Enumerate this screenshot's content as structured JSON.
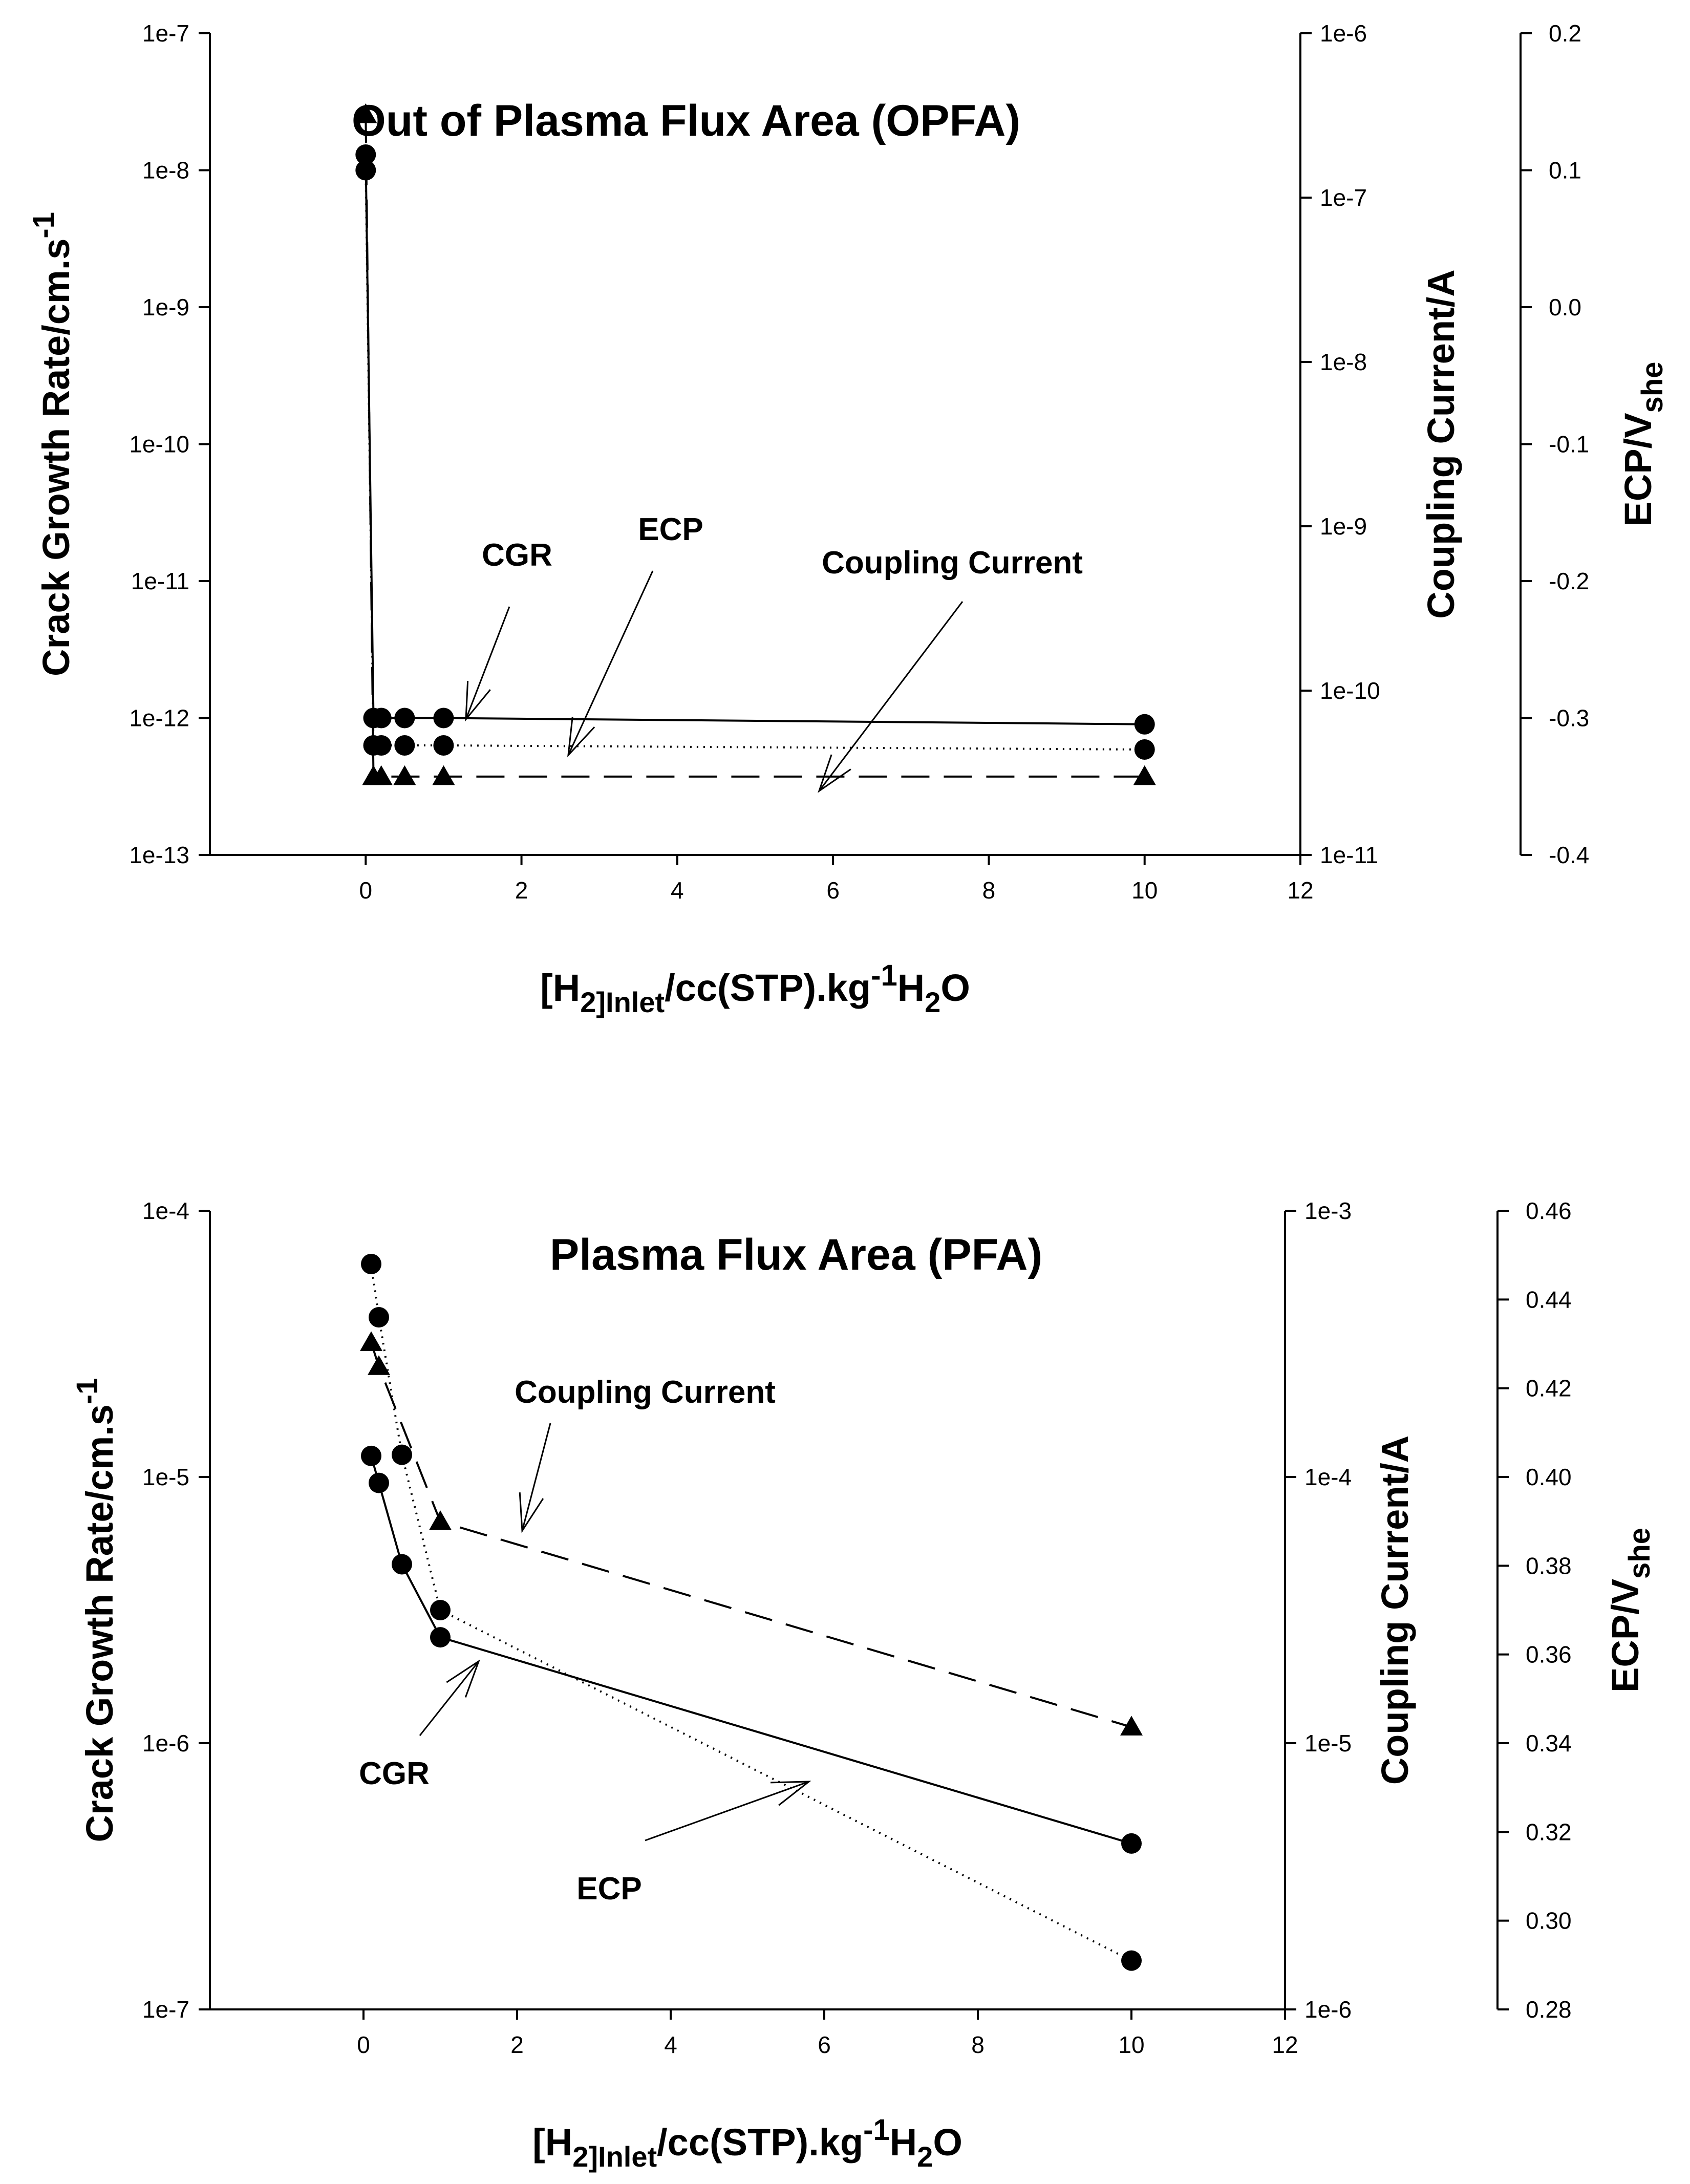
{
  "chart_data": [
    {
      "type": "line",
      "title": "Out of Plasma Flux Area (OPFA)",
      "xlabel": {
        "main": "[H",
        "sub1": "2",
        "sub2": "]Inlet",
        "mid": "/cc(STP).kg",
        "sup": "-1",
        "end1": "H",
        "sub3": "2",
        "end2": "O"
      },
      "xlim": [
        -2,
        12
      ],
      "xticks": [
        0,
        2,
        4,
        6,
        8,
        10,
        12
      ],
      "xtick_labels": [
        "0",
        "2",
        "4",
        "6",
        "8",
        "10",
        "12"
      ],
      "y_left": {
        "label": "Crack Growth Rate/cm.s",
        "label_sup": "-1",
        "scale": "log",
        "range": [
          1e-13,
          1e-07
        ],
        "ticks": [
          1e-13,
          1e-12,
          1e-11,
          1e-10,
          1e-09,
          1e-08,
          1e-07
        ],
        "tick_labels": [
          "1e-13",
          "1e-12",
          "1e-11",
          "1e-10",
          "1e-9",
          "1e-8",
          "1e-7"
        ]
      },
      "y_right1": {
        "label": "Coupling Current/A",
        "scale": "log",
        "range": [
          1e-11,
          1e-06
        ],
        "ticks": [
          1e-11,
          1e-10,
          1e-09,
          1e-08,
          1e-07,
          1e-06
        ],
        "tick_labels": [
          "1e-11",
          "1e-10",
          "1e-9",
          "1e-8",
          "1e-7",
          "1e-6"
        ]
      },
      "y_right2": {
        "label": "ECP/V",
        "label_sub": "she",
        "scale": "linear",
        "range": [
          -0.4,
          0.2
        ],
        "ticks": [
          -0.4,
          -0.3,
          -0.2,
          -0.1,
          0.0,
          0.1,
          0.2
        ],
        "tick_labels": [
          "-0.4",
          "-0.3",
          "-0.2",
          "-0.1",
          "0.0",
          "0.1",
          "0.2"
        ]
      },
      "series": [
        {
          "name": "CGR",
          "axis": "y_left",
          "marker": "circle",
          "line": "solid",
          "x": [
            0,
            0.1,
            0.2,
            0.5,
            1,
            10
          ],
          "y": [
            1.3e-08,
            1e-12,
            1e-12,
            1e-12,
            1e-12,
            9e-13
          ]
        },
        {
          "name": "ECP",
          "axis": "y_right2",
          "marker": "circle",
          "line": "dotted",
          "x": [
            0,
            0.1,
            0.2,
            0.5,
            1,
            10
          ],
          "y": [
            0.1,
            -0.32,
            -0.32,
            -0.32,
            -0.32,
            -0.323
          ]
        },
        {
          "name": "Coupling Current",
          "axis": "y_right1",
          "marker": "triangle",
          "line": "dashed",
          "x": [
            0,
            0.1,
            0.2,
            0.5,
            1,
            10
          ],
          "y": [
            3.2e-07,
            3e-11,
            3e-11,
            3e-11,
            3e-11,
            3e-11
          ]
        }
      ],
      "annotations": [
        "CGR",
        "ECP",
        "Coupling Current"
      ]
    },
    {
      "type": "line",
      "title": "Plasma Flux Area (PFA)",
      "xlabel": {
        "main": "[H",
        "sub1": "2",
        "sub2": "]Inlet",
        "mid": "/cc(STP).kg",
        "sup": "-1",
        "end1": "H",
        "sub3": "2",
        "end2": "O"
      },
      "xlim": [
        -2,
        12
      ],
      "xticks": [
        0,
        2,
        4,
        6,
        8,
        10,
        12
      ],
      "xtick_labels": [
        "0",
        "2",
        "4",
        "6",
        "8",
        "10",
        "12"
      ],
      "y_left": {
        "label": "Crack Growth Rate/cm.s",
        "label_sup": "-1",
        "scale": "log",
        "range": [
          1e-07,
          0.0001
        ],
        "ticks": [
          1e-07,
          1e-06,
          1e-05,
          0.0001
        ],
        "tick_labels": [
          "1e-7",
          "1e-6",
          "1e-5",
          "1e-4"
        ]
      },
      "y_right1": {
        "label": "Coupling Current/A",
        "scale": "log",
        "range": [
          1e-06,
          0.001
        ],
        "ticks": [
          1e-06,
          1e-05,
          0.0001,
          0.001
        ],
        "tick_labels": [
          "1e-6",
          "1e-5",
          "1e-4",
          "1e-3"
        ]
      },
      "y_right2": {
        "label": "ECP/V",
        "label_sub": "she",
        "scale": "linear",
        "range": [
          0.28,
          0.46
        ],
        "ticks": [
          0.28,
          0.3,
          0.32,
          0.34,
          0.36,
          0.38,
          0.4,
          0.42,
          0.44,
          0.46
        ],
        "tick_labels": [
          "0.28",
          "0.30",
          "0.32",
          "0.34",
          "0.36",
          "0.38",
          "0.40",
          "0.42",
          "0.44",
          "0.46"
        ]
      },
      "series": [
        {
          "name": "CGR",
          "axis": "y_left",
          "marker": "circle",
          "line": "solid",
          "x": [
            0.1,
            0.2,
            0.5,
            1,
            10
          ],
          "y": [
            1.2e-05,
            9.5e-06,
            4.7e-06,
            2.5e-06,
            4.2e-07
          ]
        },
        {
          "name": "ECP",
          "axis": "y_right2",
          "marker": "circle",
          "line": "dotted",
          "x": [
            0.1,
            0.2,
            0.5,
            1,
            10
          ],
          "y": [
            0.448,
            0.436,
            0.405,
            0.37,
            0.291
          ]
        },
        {
          "name": "Coupling Current",
          "axis": "y_right1",
          "marker": "triangle",
          "line": "dashed",
          "x": [
            0.1,
            0.2,
            1,
            10
          ],
          "y": [
            0.00032,
            0.00026,
            6.8e-05,
            1.15e-05
          ]
        }
      ],
      "annotations": [
        "Coupling Current",
        "CGR",
        "ECP"
      ]
    }
  ]
}
